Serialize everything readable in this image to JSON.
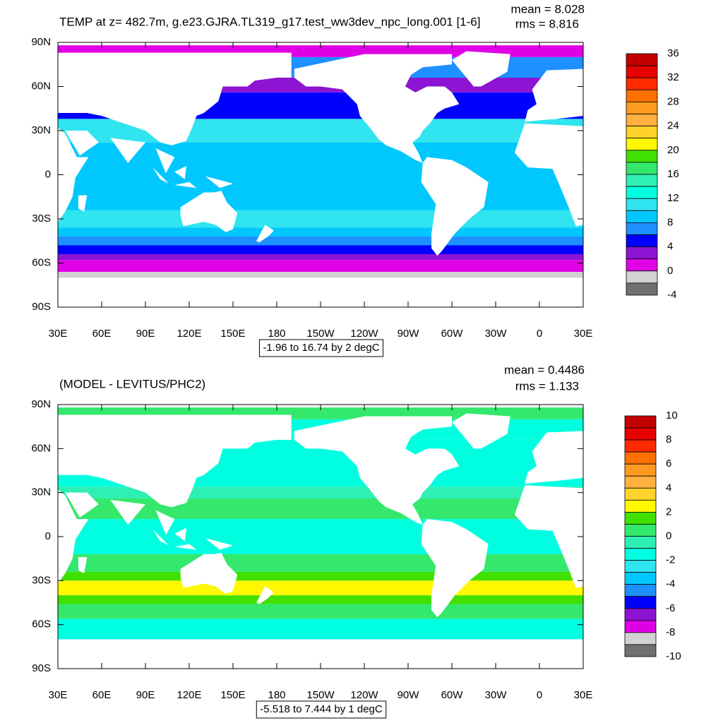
{
  "panels": [
    {
      "title": "TEMP at z= 482.7m, g.e23.GJRA.TL319_g17.test_ww3dev_npc_long.001 [1-6]",
      "mean": "mean = 8.028",
      "rms": "rms = 8.816",
      "lat_labels": [
        "90N",
        "60N",
        "30N",
        "0",
        "30S",
        "60S",
        "90S"
      ],
      "lon_labels": [
        "30E",
        "60E",
        "90E",
        "120E",
        "150E",
        "180",
        "150W",
        "120W",
        "90W",
        "60W",
        "30W",
        "0",
        "30E"
      ],
      "range_note": "-1.96 to 16.74 by 2 degC",
      "colorbar": {
        "ticks": [
          36,
          32,
          28,
          24,
          20,
          16,
          12,
          8,
          4,
          0,
          -4
        ],
        "colors": [
          "#c20000",
          "#e60000",
          "#ff2a00",
          "#ff7000",
          "#ff9a20",
          "#ffb040",
          "#ffd22c",
          "#fff800",
          "#40e000",
          "#34e86c",
          "#2ef0b4",
          "#00ffe0",
          "#30e4f0",
          "#00c8ff",
          "#1e90ff",
          "#0000ff",
          "#8c14d2",
          "#e000e6",
          "#d2d2d2",
          "#707070"
        ]
      }
    },
    {
      "title": "(MODEL - LEVITUS/PHC2)",
      "mean": "mean = 0.4486",
      "rms": "rms = 1.133",
      "lat_labels": [
        "90N",
        "60N",
        "30N",
        "0",
        "30S",
        "60S",
        "90S"
      ],
      "lon_labels": [
        "30E",
        "60E",
        "90E",
        "120E",
        "150E",
        "180",
        "150W",
        "120W",
        "90W",
        "60W",
        "30W",
        "0",
        "30E"
      ],
      "range_note": "-5.518 to 7.444 by 1 degC",
      "colorbar": {
        "ticks": [
          10,
          8,
          6,
          4,
          2,
          0,
          -2,
          -4,
          -6,
          -8,
          -10
        ],
        "colors": [
          "#c20000",
          "#e60000",
          "#ff2a00",
          "#ff7000",
          "#ff9a20",
          "#ffb040",
          "#ffd22c",
          "#fff800",
          "#40e000",
          "#34e86c",
          "#2ef0b4",
          "#00ffe0",
          "#30e4f0",
          "#00c8ff",
          "#1e90ff",
          "#0000ff",
          "#8c14d2",
          "#e000e6",
          "#d2d2d2",
          "#707070"
        ]
      }
    }
  ]
}
